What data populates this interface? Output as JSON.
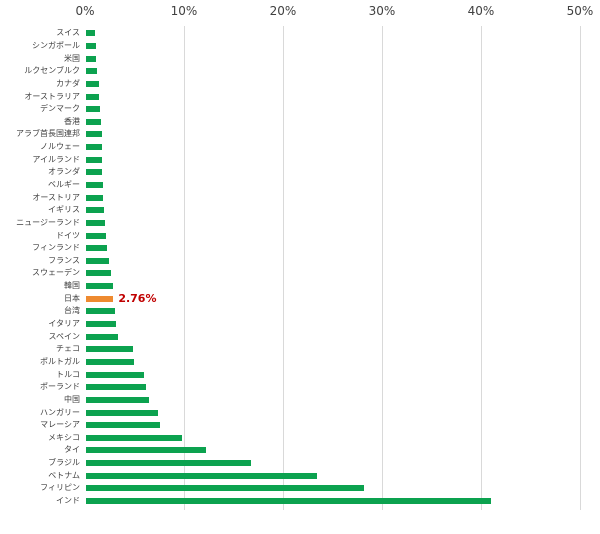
{
  "chart_data": {
    "type": "bar",
    "orientation": "horizontal",
    "title": "",
    "xlabel": "",
    "ylabel": "",
    "axis_position": "top",
    "xlim": [
      0,
      50
    ],
    "x_ticks": [
      "0%",
      "10%",
      "20%",
      "30%",
      "40%",
      "50%"
    ],
    "grid": true,
    "categories": [
      "スイス",
      "シンガポール",
      "米国",
      "ルクセンブルク",
      "カナダ",
      "オーストラリア",
      "デンマーク",
      "香港",
      "アラブ首長国連邦",
      "ノルウェー",
      "アイルランド",
      "オランダ",
      "ベルギー",
      "オーストリア",
      "イギリス",
      "ニュージーランド",
      "ドイツ",
      "フィンランド",
      "フランス",
      "スウェーデン",
      "韓国",
      "日本",
      "台湾",
      "イタリア",
      "スペイン",
      "チェコ",
      "ポルトガル",
      "トルコ",
      "ポーランド",
      "中国",
      "ハンガリー",
      "マレーシア",
      "メキシコ",
      "タイ",
      "ブラジル",
      "ベトナム",
      "フィリピン",
      "インド"
    ],
    "values": [
      0.9,
      1.0,
      1.05,
      1.1,
      1.35,
      1.35,
      1.4,
      1.55,
      1.6,
      1.6,
      1.65,
      1.65,
      1.7,
      1.7,
      1.85,
      1.9,
      2.05,
      2.1,
      2.35,
      2.5,
      2.7,
      2.76,
      2.9,
      3.05,
      3.2,
      4.75,
      4.8,
      5.85,
      6.1,
      6.4,
      7.3,
      7.5,
      9.7,
      12.1,
      16.7,
      23.3,
      28.1,
      40.9
    ],
    "value_unit": "%",
    "highlight": {
      "index": 21,
      "category": "日本",
      "value": 2.76,
      "callout_label": "2.76%"
    },
    "colors": {
      "bar_green": "#0ca24f",
      "bar_highlight_orange": "#ee8a30",
      "callout_red": "#c00000",
      "axis_text": "#404040",
      "gridline": "#d9d9d9",
      "background": "#ffffff"
    },
    "legend": null
  }
}
